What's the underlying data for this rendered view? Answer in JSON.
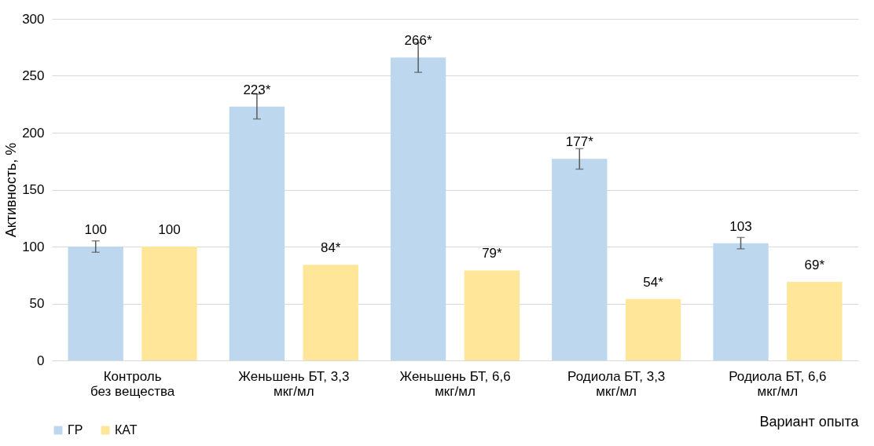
{
  "chart_data": {
    "type": "bar",
    "xlabel": "Вариант опыта",
    "ylabel": "Активность, %",
    "categories": [
      "Контроль\nбез вещества",
      "Женьшень БТ, 3,3\nмкг/мл",
      "Женьшень БТ, 6,6\nмкг/мл",
      "Родиола БТ, 3,3\nмкг/мл",
      "Родиола БТ, 6,6\nмкг/мл"
    ],
    "series": [
      {
        "name": "ГР",
        "color": "#bdd7ee",
        "values": [
          100,
          223,
          266,
          177,
          103
        ],
        "errors": [
          5,
          11,
          13,
          9,
          5
        ],
        "value_labels": [
          "100",
          "223*",
          "266*",
          "177*",
          "103"
        ]
      },
      {
        "name": "КАТ",
        "color": "#ffe699",
        "values": [
          100,
          84,
          79,
          54,
          69
        ],
        "value_labels": [
          "100",
          "84*",
          "79*",
          "54*",
          "69*"
        ]
      }
    ],
    "ylim": [
      0,
      300
    ],
    "yticks": [
      0,
      50,
      100,
      150,
      200,
      250,
      300
    ],
    "grid": "y",
    "legend": "bottom"
  }
}
